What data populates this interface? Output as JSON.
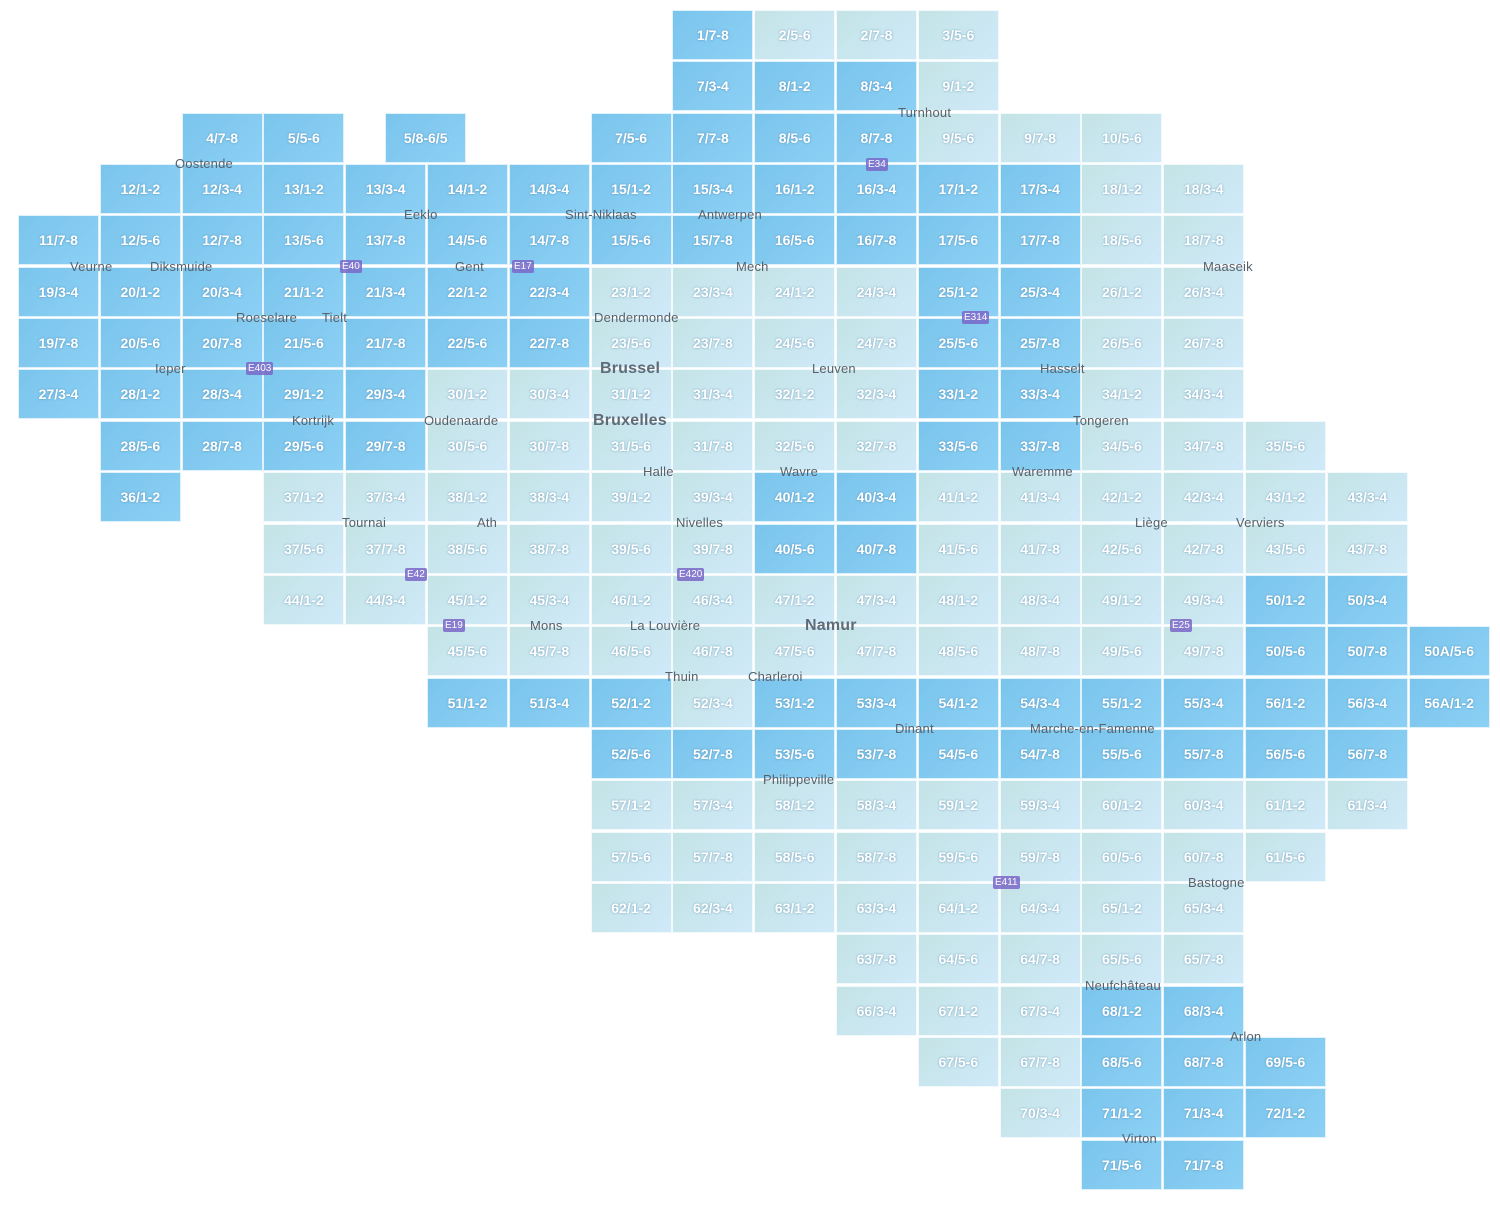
{
  "colors": {
    "dark_tile": "#8fd0f4",
    "light_tile": "#cbe7f7",
    "label": "#ffffff"
  },
  "grid": [
    [
      null,
      null,
      null,
      null,
      null,
      null,
      null,
      null,
      {
        "id": "1/7-8",
        "dark": true
      },
      {
        "id": "2/5-6"
      },
      {
        "id": "2/7-8"
      },
      {
        "id": "3/5-6"
      }
    ],
    [
      null,
      null,
      null,
      null,
      null,
      null,
      null,
      null,
      {
        "id": "7/3-4",
        "dark": true
      },
      {
        "id": "8/1-2",
        "dark": true
      },
      {
        "id": "8/3-4",
        "dark": true
      },
      {
        "id": "9/1-2"
      }
    ],
    [
      null,
      null,
      {
        "id": "4/7-8",
        "dark": true
      },
      {
        "id": "5/5-6",
        "dark": true
      },
      {
        "id": "5/8-6/5",
        "dark": true
      },
      null,
      null,
      {
        "id": "7/5-6",
        "dark": true
      },
      {
        "id": "7/7-8",
        "dark": true
      },
      {
        "id": "8/5-6",
        "dark": true
      },
      {
        "id": "8/7-8",
        "dark": true
      },
      {
        "id": "9/5-6"
      },
      {
        "id": "9/7-8"
      },
      {
        "id": "10/5-6"
      }
    ],
    [
      null,
      {
        "id": "12/1-2",
        "dark": true
      },
      {
        "id": "12/3-4",
        "dark": true
      },
      {
        "id": "13/1-2",
        "dark": true
      },
      {
        "id": "13/3-4",
        "dark": true
      },
      {
        "id": "14/1-2",
        "dark": true
      },
      {
        "id": "14/3-4",
        "dark": true
      },
      {
        "id": "15/1-2",
        "dark": true
      },
      {
        "id": "15/3-4",
        "dark": true
      },
      {
        "id": "16/1-2",
        "dark": true
      },
      {
        "id": "16/3-4",
        "dark": true
      },
      {
        "id": "17/1-2",
        "dark": true
      },
      {
        "id": "17/3-4",
        "dark": true
      },
      {
        "id": "18/1-2"
      },
      {
        "id": "18/3-4"
      }
    ],
    [
      {
        "id": "11/7-8",
        "dark": true
      },
      {
        "id": "12/5-6",
        "dark": true
      },
      {
        "id": "12/7-8",
        "dark": true
      },
      {
        "id": "13/5-6",
        "dark": true
      },
      {
        "id": "13/7-8",
        "dark": true
      },
      {
        "id": "14/5-6",
        "dark": true
      },
      {
        "id": "14/7-8",
        "dark": true
      },
      {
        "id": "15/5-6",
        "dark": true
      },
      {
        "id": "15/7-8",
        "dark": true
      },
      {
        "id": "16/5-6",
        "dark": true
      },
      {
        "id": "16/7-8",
        "dark": true
      },
      {
        "id": "17/5-6",
        "dark": true
      },
      {
        "id": "17/7-8",
        "dark": true
      },
      {
        "id": "18/5-6"
      },
      {
        "id": "18/7-8"
      }
    ],
    [
      {
        "id": "19/3-4",
        "dark": true
      },
      {
        "id": "20/1-2",
        "dark": true
      },
      {
        "id": "20/3-4",
        "dark": true
      },
      {
        "id": "21/1-2",
        "dark": true
      },
      {
        "id": "21/3-4",
        "dark": true
      },
      {
        "id": "22/1-2",
        "dark": true
      },
      {
        "id": "22/3-4",
        "dark": true
      },
      {
        "id": "23/1-2"
      },
      {
        "id": "23/3-4"
      },
      {
        "id": "24/1-2"
      },
      {
        "id": "24/3-4"
      },
      {
        "id": "25/1-2",
        "dark": true
      },
      {
        "id": "25/3-4",
        "dark": true
      },
      {
        "id": "26/1-2"
      },
      {
        "id": "26/3-4"
      }
    ],
    [
      {
        "id": "19/7-8",
        "dark": true
      },
      {
        "id": "20/5-6",
        "dark": true
      },
      {
        "id": "20/7-8",
        "dark": true
      },
      {
        "id": "21/5-6",
        "dark": true
      },
      {
        "id": "21/7-8",
        "dark": true
      },
      {
        "id": "22/5-6",
        "dark": true
      },
      {
        "id": "22/7-8",
        "dark": true
      },
      {
        "id": "23/5-6"
      },
      {
        "id": "23/7-8"
      },
      {
        "id": "24/5-6"
      },
      {
        "id": "24/7-8"
      },
      {
        "id": "25/5-6",
        "dark": true
      },
      {
        "id": "25/7-8",
        "dark": true
      },
      {
        "id": "26/5-6"
      },
      {
        "id": "26/7-8"
      }
    ],
    [
      {
        "id": "27/3-4",
        "dark": true
      },
      {
        "id": "28/1-2",
        "dark": true
      },
      {
        "id": "28/3-4",
        "dark": true
      },
      {
        "id": "29/1-2",
        "dark": true
      },
      {
        "id": "29/3-4",
        "dark": true
      },
      {
        "id": "30/1-2"
      },
      {
        "id": "30/3-4"
      },
      {
        "id": "31/1-2"
      },
      {
        "id": "31/3-4"
      },
      {
        "id": "32/1-2"
      },
      {
        "id": "32/3-4"
      },
      {
        "id": "33/1-2",
        "dark": true
      },
      {
        "id": "33/3-4",
        "dark": true
      },
      {
        "id": "34/1-2"
      },
      {
        "id": "34/3-4"
      }
    ],
    [
      null,
      {
        "id": "28/5-6",
        "dark": true
      },
      {
        "id": "28/7-8",
        "dark": true
      },
      {
        "id": "29/5-6",
        "dark": true
      },
      {
        "id": "29/7-8",
        "dark": true
      },
      {
        "id": "30/5-6"
      },
      {
        "id": "30/7-8"
      },
      {
        "id": "31/5-6"
      },
      {
        "id": "31/7-8"
      },
      {
        "id": "32/5-6"
      },
      {
        "id": "32/7-8"
      },
      {
        "id": "33/5-6",
        "dark": true
      },
      {
        "id": "33/7-8",
        "dark": true
      },
      {
        "id": "34/5-6"
      },
      {
        "id": "34/7-8"
      },
      {
        "id": "35/5-6"
      }
    ],
    [
      null,
      {
        "id": "36/1-2",
        "dark": true
      },
      null,
      {
        "id": "37/1-2"
      },
      {
        "id": "37/3-4"
      },
      {
        "id": "38/1-2"
      },
      {
        "id": "38/3-4"
      },
      {
        "id": "39/1-2"
      },
      {
        "id": "39/3-4"
      },
      {
        "id": "40/1-2",
        "dark": true
      },
      {
        "id": "40/3-4",
        "dark": true
      },
      {
        "id": "41/1-2"
      },
      {
        "id": "41/3-4"
      },
      {
        "id": "42/1-2"
      },
      {
        "id": "42/3-4"
      },
      {
        "id": "43/1-2"
      },
      {
        "id": "43/3-4"
      }
    ],
    [
      null,
      null,
      null,
      {
        "id": "37/5-6"
      },
      {
        "id": "37/7-8"
      },
      {
        "id": "38/5-6"
      },
      {
        "id": "38/7-8"
      },
      {
        "id": "39/5-6"
      },
      {
        "id": "39/7-8"
      },
      {
        "id": "40/5-6",
        "dark": true
      },
      {
        "id": "40/7-8",
        "dark": true
      },
      {
        "id": "41/5-6"
      },
      {
        "id": "41/7-8"
      },
      {
        "id": "42/5-6"
      },
      {
        "id": "42/7-8"
      },
      {
        "id": "43/5-6"
      },
      {
        "id": "43/7-8"
      }
    ],
    [
      null,
      null,
      null,
      {
        "id": "44/1-2"
      },
      {
        "id": "44/3-4"
      },
      {
        "id": "45/1-2"
      },
      {
        "id": "45/3-4"
      },
      {
        "id": "46/1-2"
      },
      {
        "id": "46/3-4"
      },
      {
        "id": "47/1-2"
      },
      {
        "id": "47/3-4"
      },
      {
        "id": "48/1-2"
      },
      {
        "id": "48/3-4"
      },
      {
        "id": "49/1-2"
      },
      {
        "id": "49/3-4"
      },
      {
        "id": "50/1-2",
        "dark": true
      },
      {
        "id": "50/3-4",
        "dark": true
      }
    ],
    [
      null,
      null,
      null,
      null,
      null,
      {
        "id": "45/5-6"
      },
      {
        "id": "45/7-8"
      },
      {
        "id": "46/5-6"
      },
      {
        "id": "46/7-8"
      },
      {
        "id": "47/5-6"
      },
      {
        "id": "47/7-8"
      },
      {
        "id": "48/5-6"
      },
      {
        "id": "48/7-8"
      },
      {
        "id": "49/5-6"
      },
      {
        "id": "49/7-8"
      },
      {
        "id": "50/5-6",
        "dark": true
      },
      {
        "id": "50/7-8",
        "dark": true
      },
      {
        "id": "50A/5-6",
        "dark": true
      }
    ],
    [
      null,
      null,
      null,
      null,
      null,
      {
        "id": "51/1-2",
        "dark": true
      },
      {
        "id": "51/3-4",
        "dark": true
      },
      {
        "id": "52/1-2",
        "dark": true
      },
      {
        "id": "52/3-4"
      },
      {
        "id": "53/1-2",
        "dark": true
      },
      {
        "id": "53/3-4",
        "dark": true
      },
      {
        "id": "54/1-2",
        "dark": true
      },
      {
        "id": "54/3-4",
        "dark": true
      },
      {
        "id": "55/1-2",
        "dark": true
      },
      {
        "id": "55/3-4",
        "dark": true
      },
      {
        "id": "56/1-2",
        "dark": true
      },
      {
        "id": "56/3-4",
        "dark": true
      },
      {
        "id": "56A/1-2",
        "dark": true
      }
    ],
    [
      null,
      null,
      null,
      null,
      null,
      null,
      null,
      {
        "id": "52/5-6",
        "dark": true
      },
      {
        "id": "52/7-8",
        "dark": true
      },
      {
        "id": "53/5-6",
        "dark": true
      },
      {
        "id": "53/7-8",
        "dark": true
      },
      {
        "id": "54/5-6",
        "dark": true
      },
      {
        "id": "54/7-8",
        "dark": true
      },
      {
        "id": "55/5-6",
        "dark": true
      },
      {
        "id": "55/7-8",
        "dark": true
      },
      {
        "id": "56/5-6",
        "dark": true
      },
      {
        "id": "56/7-8",
        "dark": true
      }
    ],
    [
      null,
      null,
      null,
      null,
      null,
      null,
      null,
      {
        "id": "57/1-2"
      },
      {
        "id": "57/3-4"
      },
      {
        "id": "58/1-2"
      },
      {
        "id": "58/3-4"
      },
      {
        "id": "59/1-2"
      },
      {
        "id": "59/3-4"
      },
      {
        "id": "60/1-2"
      },
      {
        "id": "60/3-4"
      },
      {
        "id": "61/1-2"
      },
      {
        "id": "61/3-4"
      }
    ],
    [
      null,
      null,
      null,
      null,
      null,
      null,
      null,
      {
        "id": "57/5-6"
      },
      {
        "id": "57/7-8"
      },
      {
        "id": "58/5-6"
      },
      {
        "id": "58/7-8"
      },
      {
        "id": "59/5-6"
      },
      {
        "id": "59/7-8"
      },
      {
        "id": "60/5-6"
      },
      {
        "id": "60/7-8"
      },
      {
        "id": "61/5-6"
      }
    ],
    [
      null,
      null,
      null,
      null,
      null,
      null,
      null,
      {
        "id": "62/1-2"
      },
      {
        "id": "62/3-4"
      },
      {
        "id": "63/1-2"
      },
      {
        "id": "63/3-4"
      },
      {
        "id": "64/1-2"
      },
      {
        "id": "64/3-4"
      },
      {
        "id": "65/1-2"
      },
      {
        "id": "65/3-4"
      }
    ],
    [
      null,
      null,
      null,
      null,
      null,
      null,
      null,
      null,
      null,
      null,
      {
        "id": "63/7-8"
      },
      {
        "id": "64/5-6"
      },
      {
        "id": "64/7-8"
      },
      {
        "id": "65/5-6"
      },
      {
        "id": "65/7-8"
      }
    ],
    [
      null,
      null,
      null,
      null,
      null,
      null,
      null,
      null,
      null,
      null,
      {
        "id": "66/3-4"
      },
      {
        "id": "67/1-2"
      },
      {
        "id": "67/3-4"
      },
      {
        "id": "68/1-2",
        "dark": true
      },
      {
        "id": "68/3-4",
        "dark": true
      }
    ],
    [
      null,
      null,
      null,
      null,
      null,
      null,
      null,
      null,
      null,
      null,
      null,
      {
        "id": "67/5-6"
      },
      {
        "id": "67/7-8"
      },
      {
        "id": "68/5-6",
        "dark": true
      },
      {
        "id": "68/7-8",
        "dark": true
      },
      {
        "id": "69/5-6",
        "dark": true
      }
    ],
    [
      null,
      null,
      null,
      null,
      null,
      null,
      null,
      null,
      null,
      null,
      null,
      null,
      {
        "id": "70/3-4"
      },
      {
        "id": "71/1-2",
        "dark": true
      },
      {
        "id": "71/3-4",
        "dark": true
      },
      {
        "id": "72/1-2",
        "dark": true
      }
    ],
    [
      null,
      null,
      null,
      null,
      null,
      null,
      null,
      null,
      null,
      null,
      null,
      null,
      null,
      {
        "id": "71/5-6",
        "dark": true
      },
      {
        "id": "71/7-8",
        "dark": true
      }
    ]
  ],
  "places": [
    "Oostende",
    "Eeklo",
    "Veurne",
    "Diksmuide",
    "Tielt",
    "Roeselare",
    "Ieper",
    "Kortrijk",
    "Gent",
    "Sint-Niklaas",
    "Antwerpen",
    "Turnhout",
    "Maaseik",
    "Dendermonde",
    "Mech",
    "Leuven",
    "Brussel",
    "Bruxelles",
    "Halle",
    "Wavre",
    "Hasselt",
    "Tongeren",
    "Waremme",
    "Liège",
    "Verviers",
    "Oudenaarde",
    "Ath",
    "Tournai",
    "Nivelles",
    "Mons",
    "La Louvière",
    "Charleroi",
    "Namur",
    "Thuin",
    "Dinant",
    "Philippeville",
    "Marche-en-Famenne",
    "Bastogne",
    "Neufchâteau",
    "Arlon",
    "Virton"
  ],
  "roads": [
    "E40",
    "E17",
    "E34",
    "E403",
    "E19",
    "E42",
    "E420",
    "E411",
    "E314",
    "E25"
  ]
}
